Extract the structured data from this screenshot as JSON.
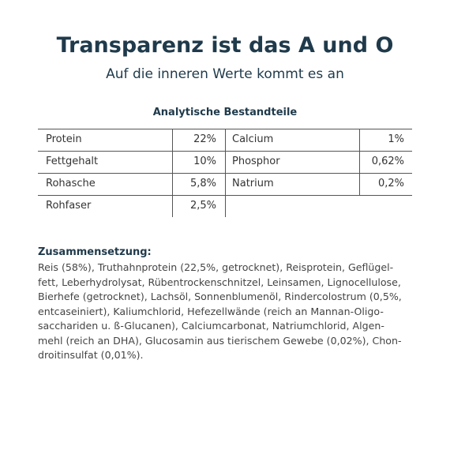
{
  "header": {
    "title": "Transparenz ist das A und O",
    "subtitle": "Auf die inneren Werte kommt es an"
  },
  "table": {
    "caption": "Analytische Bestandteile",
    "rows": [
      [
        "Protein",
        "22%",
        "Calcium",
        "1%"
      ],
      [
        "Fettgehalt",
        "10%",
        "Phosphor",
        "0,62%"
      ],
      [
        "Rohasche",
        "5,8%",
        "Natrium",
        "0,2%"
      ],
      [
        "Rohfaser",
        "2,5%"
      ]
    ]
  },
  "composition": {
    "heading": "Zusammensetzung:",
    "lines": [
      "Reis (58%), Truthahnprotein (22,5%, getrocknet), Reisprotein, Geflügel-",
      "fett, Leberhydrolysat, Rübentrockenschnitzel, Leinsamen, Lignocellulose,",
      "Bierhefe (getrocknet), Lachsöl, Sonnenblumenöl, Rindercolostrum (0,5%,",
      "entcaseiniert), Kaliumchlorid, Hefezellwände (reich an Mannan-Oligo-",
      "sacchariden u. ß-Glucanen), Calciumcarbonat, Natriumchlorid, Algen-",
      "mehl (reich an DHA), Glucosamin aus tierischem Gewebe (0,02%), Chon-",
      "droitinsulfat (0,01%)."
    ]
  }
}
